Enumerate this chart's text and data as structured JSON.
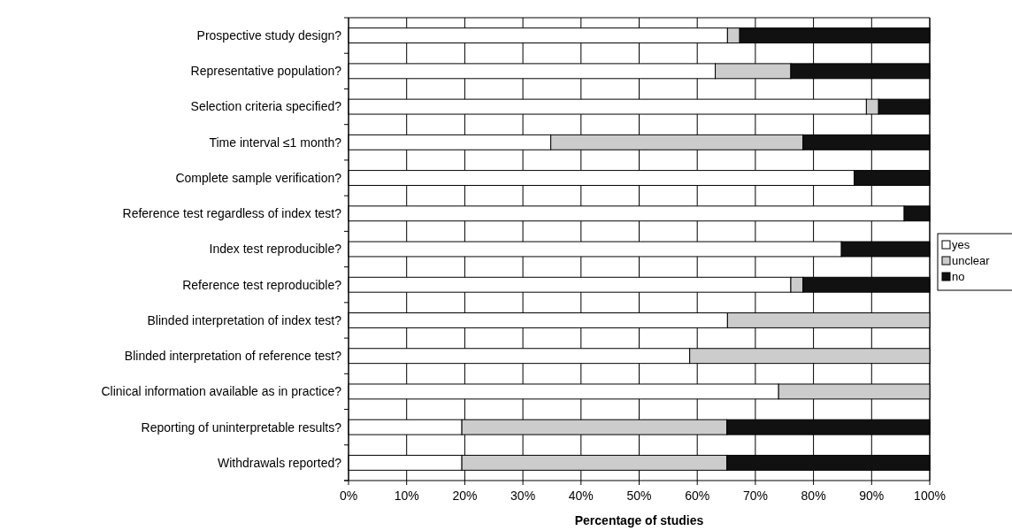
{
  "chart_data": {
    "type": "bar",
    "orientation": "horizontal",
    "stacked": true,
    "categories": [
      "Prospective study design?",
      "Representative population?",
      "Selection criteria specified?",
      "Time interval ≤1 month?",
      "Complete sample verification?",
      "Reference test regardless of index test?",
      "Index test reproducible?",
      "Reference test reproducible?",
      "Blinded interpretation of index test?",
      "Blinded interpretation of reference test?",
      "Clinical information available as in practice?",
      "Reporting of uninterpretable results?",
      "Withdrawals reported?"
    ],
    "series": [
      {
        "name": "yes",
        "color": "#ffffff",
        "values": [
          65.2,
          63.1,
          89.1,
          34.8,
          87.0,
          95.6,
          84.8,
          76.1,
          65.2,
          58.7,
          74.0,
          19.5,
          19.5
        ]
      },
      {
        "name": "unclear",
        "color": "#cccccc",
        "values": [
          2.1,
          13.0,
          2.1,
          43.4,
          null,
          null,
          null,
          2.1,
          34.8,
          41.3,
          26.0,
          45.6,
          45.6
        ]
      },
      {
        "name": "no",
        "color": "#111111",
        "values": [
          32.7,
          23.9,
          8.8,
          21.8,
          13.0,
          4.4,
          15.2,
          21.8,
          null,
          null,
          null,
          34.9,
          34.9
        ]
      }
    ],
    "xlabel": "Percentage of studies",
    "xlim": [
      0,
      100
    ],
    "xticks": [
      {
        "value": 0,
        "label": "0%"
      },
      {
        "value": 10,
        "label": "10%"
      },
      {
        "value": 20,
        "label": "20%"
      },
      {
        "value": 30,
        "label": "30%"
      },
      {
        "value": 40,
        "label": "40%"
      },
      {
        "value": 50,
        "label": "50%"
      },
      {
        "value": 60,
        "label": "60%"
      },
      {
        "value": 70,
        "label": "70%"
      },
      {
        "value": 80,
        "label": "80%"
      },
      {
        "value": 90,
        "label": "90%"
      },
      {
        "value": 100,
        "label": "100%"
      }
    ],
    "grid": "x",
    "legend": "right"
  }
}
